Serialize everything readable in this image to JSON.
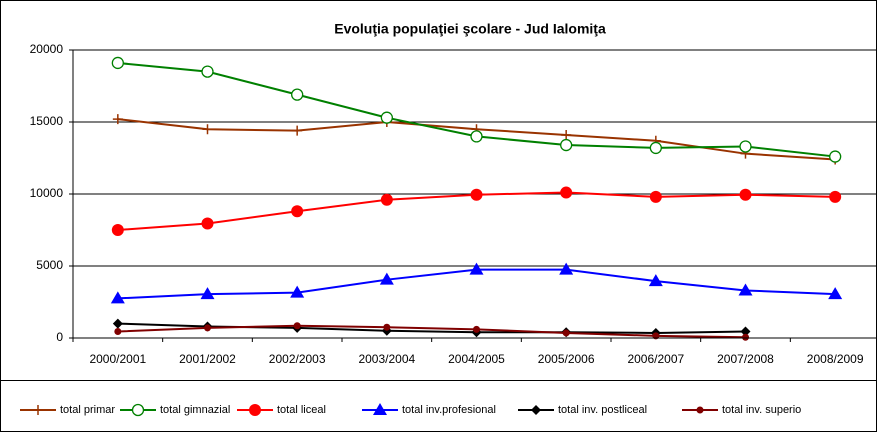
{
  "chart_data": {
    "type": "line",
    "title": "Evoluţia populaţiei şcolare - Jud Ialomiţa",
    "categories": [
      "2000/2001",
      "2001/2002",
      "2002/2003",
      "2003/2004",
      "2004/2005",
      "2005/2006",
      "2006/2007",
      "2007/2008",
      "2008/2009"
    ],
    "series": [
      {
        "name": "total primar",
        "color": "#993300",
        "marker": "plus",
        "values": [
          15200,
          14500,
          14400,
          15000,
          14500,
          14100,
          13700,
          12800,
          12400
        ]
      },
      {
        "name": "total gimnazial",
        "color": "#008000",
        "marker": "open-circle",
        "values": [
          19100,
          18500,
          16900,
          15300,
          14000,
          13400,
          13200,
          13300,
          12600
        ]
      },
      {
        "name": "total liceal",
        "color": "#ff0000",
        "marker": "circle",
        "values": [
          7500,
          7950,
          8800,
          9600,
          9950,
          10100,
          9800,
          9950,
          9800
        ]
      },
      {
        "name": "total inv.profesional",
        "color": "#0000ff",
        "marker": "triangle",
        "values": [
          2750,
          3050,
          3150,
          4050,
          4750,
          4750,
          3950,
          3300,
          3050
        ]
      },
      {
        "name": "total inv. postliceal",
        "color": "#000000",
        "marker": "diamond",
        "values": [
          1000,
          800,
          700,
          500,
          400,
          400,
          350,
          450,
          null
        ]
      },
      {
        "name": "total inv. superio",
        "color": "#800000",
        "marker": "small-circle",
        "values": [
          450,
          700,
          850,
          750,
          600,
          350,
          150,
          50,
          null
        ]
      }
    ],
    "ylim": [
      0,
      20000
    ],
    "yticks": [
      0,
      5000,
      10000,
      15000,
      20000
    ],
    "grid": true,
    "legend": "bottom"
  }
}
